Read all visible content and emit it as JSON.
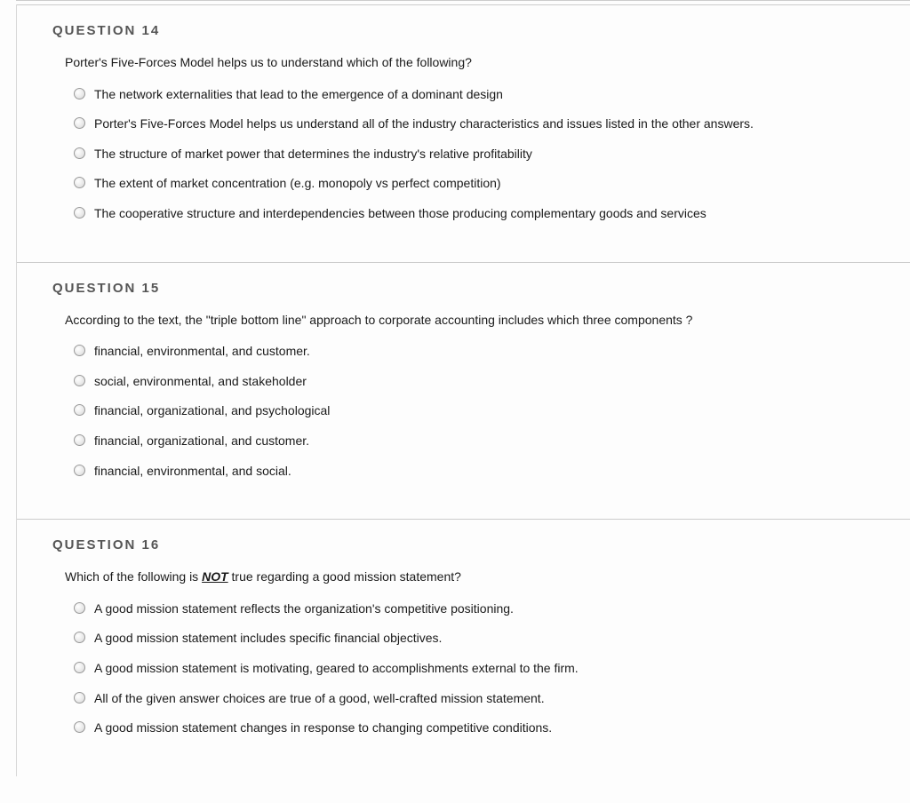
{
  "questions": [
    {
      "header": "QUESTION 14",
      "text": "Porter's Five-Forces Model helps us to understand which of the following?",
      "options": [
        "The network externalities that lead to the emergence of a dominant design",
        "Porter's Five-Forces Model helps us understand all of the industry characteristics and issues listed in the other answers.",
        "The structure of market power that determines the industry's relative profitability",
        "The extent of market concentration (e.g. monopoly vs perfect competition)",
        "The cooperative structure and interdependencies between those producing complementary goods and services"
      ]
    },
    {
      "header": "QUESTION 15",
      "text": "According to the text, the \"triple bottom line\" approach to corporate accounting includes which three components ?",
      "options": [
        "financial, environmental, and customer.",
        "social, environmental, and stakeholder",
        "financial, organizational, and psychological",
        "financial, organizational, and customer.",
        "financial, environmental, and social."
      ]
    },
    {
      "header": "QUESTION 16",
      "text_parts": {
        "before": "Which of the following is ",
        "emphasis": "NOT",
        "after": " true regarding a good mission statement?"
      },
      "options": [
        "A good mission statement reflects the organization's competitive positioning.",
        "A good mission statement includes specific financial objectives.",
        "A good mission statement is motivating, geared to accomplishments external to the firm.",
        "All of the given answer choices are true of a good, well-crafted mission statement.",
        "A good mission statement changes in response to changing competitive conditions."
      ]
    }
  ],
  "colors": {
    "border": "#cccccc",
    "left_border": "#d8d8d8",
    "header_text": "#555555",
    "body_text": "#1a1a1a",
    "background": "#fdfdfd",
    "radio_border": "#999999"
  }
}
